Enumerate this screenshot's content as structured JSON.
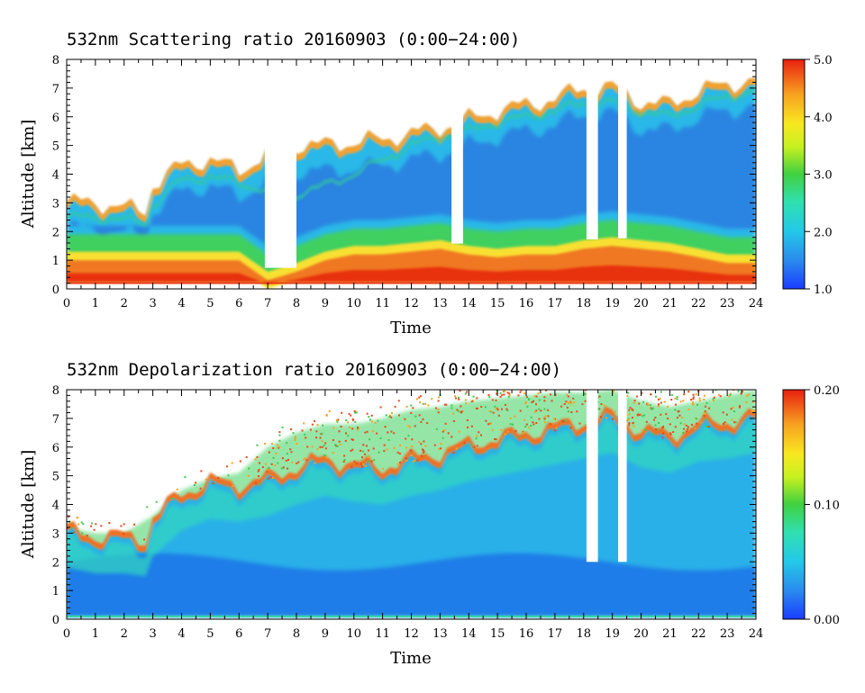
{
  "chart_data": [
    {
      "type": "heatmap",
      "title": "532nm Scattering ratio  20160903 (0:00−24:00)",
      "xlabel": "Time",
      "ylabel": "Altitude [km]",
      "xlim": [
        0,
        24
      ],
      "ylim": [
        0,
        8
      ],
      "xticks": [
        "0",
        "1",
        "2",
        "3",
        "4",
        "5",
        "6",
        "7",
        "8",
        "9",
        "10",
        "11",
        "12",
        "13",
        "14",
        "15",
        "16",
        "17",
        "18",
        "19",
        "20",
        "21",
        "22",
        "23",
        "24"
      ],
      "yticks": [
        "0",
        "1",
        "2",
        "3",
        "4",
        "5",
        "6",
        "7",
        "8"
      ],
      "colorbar": {
        "range": [
          1.0,
          5.0
        ],
        "ticks": [
          "1.0",
          "2.0",
          "3.0",
          "4.0",
          "5.0"
        ]
      },
      "cloud_top_km": [
        [
          0,
          2.9
        ],
        [
          1,
          2.9
        ],
        [
          2,
          2.7
        ],
        [
          2.8,
          2.6
        ],
        [
          3,
          3.5
        ],
        [
          4,
          4.2
        ],
        [
          5,
          4.4
        ],
        [
          6,
          4.0
        ],
        [
          6.5,
          4.3
        ],
        [
          7,
          4.6
        ],
        [
          8,
          4.9
        ],
        [
          9,
          4.9
        ],
        [
          10,
          5.0
        ],
        [
          11,
          5.1
        ],
        [
          12,
          5.3
        ],
        [
          13,
          5.5
        ],
        [
          14,
          5.8
        ],
        [
          15,
          6.1
        ],
        [
          16,
          6.3
        ],
        [
          17,
          6.5
        ],
        [
          18,
          6.9
        ],
        [
          19,
          6.9
        ],
        [
          20,
          6.4
        ],
        [
          21,
          6.3
        ],
        [
          22,
          6.8
        ],
        [
          23,
          7.0
        ],
        [
          24,
          7.2
        ]
      ],
      "high_layer_km": [
        [
          0,
          2.5
        ],
        [
          1,
          2.5
        ],
        [
          2,
          2.4
        ],
        [
          2.8,
          2.3
        ],
        [
          3,
          2.9
        ],
        [
          4,
          3.8
        ],
        [
          5,
          3.9
        ],
        [
          6,
          3.7
        ],
        [
          7,
          3.4
        ],
        [
          8,
          3.3
        ],
        [
          9,
          3.6
        ],
        [
          10,
          4.0
        ],
        [
          11,
          4.5
        ],
        [
          12,
          5.0
        ],
        [
          13,
          5.3
        ],
        [
          14,
          5.5
        ],
        [
          15,
          5.8
        ],
        [
          16,
          6.0
        ],
        [
          17,
          6.2
        ],
        [
          18,
          6.5
        ],
        [
          19,
          6.5
        ],
        [
          20,
          6.2
        ],
        [
          21,
          6.0
        ],
        [
          22,
          6.4
        ],
        [
          23,
          6.7
        ],
        [
          24,
          6.9
        ]
      ],
      "boundary_layer_top_km": [
        [
          0,
          1.0
        ],
        [
          1,
          1.0
        ],
        [
          2,
          1.0
        ],
        [
          3,
          1.0
        ],
        [
          4,
          1.0
        ],
        [
          5,
          1.0
        ],
        [
          6,
          1.0
        ],
        [
          7,
          0.3
        ],
        [
          8,
          0.6
        ],
        [
          9,
          1.0
        ],
        [
          10,
          1.2
        ],
        [
          11,
          1.2
        ],
        [
          12,
          1.3
        ],
        [
          13,
          1.4
        ],
        [
          14,
          1.2
        ],
        [
          15,
          1.1
        ],
        [
          16,
          1.2
        ],
        [
          17,
          1.2
        ],
        [
          18,
          1.4
        ],
        [
          19,
          1.5
        ],
        [
          20,
          1.4
        ],
        [
          21,
          1.3
        ],
        [
          22,
          1.1
        ],
        [
          23,
          0.9
        ],
        [
          24,
          0.9
        ]
      ],
      "clear_gaps_hours": [
        [
          6.9,
          8.0
        ],
        [
          13.4,
          13.8
        ],
        [
          18.1,
          18.5
        ],
        [
          19.2,
          19.5
        ]
      ]
    },
    {
      "type": "heatmap",
      "title": "532nm Depolarization ratio  20160903 (0:00−24:00)",
      "xlabel": "Time",
      "ylabel": "Altitude [km]",
      "xlim": [
        0,
        24
      ],
      "ylim": [
        0,
        8
      ],
      "xticks": [
        "0",
        "1",
        "2",
        "3",
        "4",
        "5",
        "6",
        "7",
        "8",
        "9",
        "10",
        "11",
        "12",
        "13",
        "14",
        "15",
        "16",
        "17",
        "18",
        "19",
        "20",
        "21",
        "22",
        "23",
        "24"
      ],
      "yticks": [
        "0",
        "1",
        "2",
        "3",
        "4",
        "5",
        "6",
        "7",
        "8"
      ],
      "colorbar": {
        "range": [
          0.0,
          0.2
        ],
        "ticks": [
          "0.00",
          "0.10",
          "0.20"
        ]
      },
      "cloud_top_km": [
        [
          0,
          3.0
        ],
        [
          1,
          2.8
        ],
        [
          2,
          2.8
        ],
        [
          2.8,
          2.7
        ],
        [
          3,
          3.4
        ],
        [
          4,
          4.3
        ],
        [
          5,
          4.7
        ],
        [
          6,
          4.6
        ],
        [
          7,
          4.8
        ],
        [
          8,
          5.2
        ],
        [
          9,
          5.5
        ],
        [
          10,
          5.3
        ],
        [
          11,
          5.2
        ],
        [
          12,
          5.5
        ],
        [
          13,
          5.7
        ],
        [
          14,
          6.0
        ],
        [
          15,
          6.2
        ],
        [
          16,
          6.4
        ],
        [
          17,
          6.6
        ],
        [
          18,
          6.8
        ],
        [
          19,
          7.0
        ],
        [
          20,
          6.5
        ],
        [
          21,
          6.3
        ],
        [
          22,
          6.7
        ],
        [
          23,
          6.8
        ],
        [
          24,
          7.0
        ]
      ],
      "upper_layer_top_km": [
        [
          0,
          3.2
        ],
        [
          1,
          3.0
        ],
        [
          2,
          3.0
        ],
        [
          3,
          3.6
        ],
        [
          4,
          4.5
        ],
        [
          5,
          4.9
        ],
        [
          6,
          5.1
        ],
        [
          7,
          6.0
        ],
        [
          8,
          6.5
        ],
        [
          9,
          6.8
        ],
        [
          10,
          6.8
        ],
        [
          11,
          7.0
        ],
        [
          12,
          7.3
        ],
        [
          13,
          7.4
        ],
        [
          14,
          7.6
        ],
        [
          15,
          7.7
        ],
        [
          16,
          7.8
        ],
        [
          17,
          7.9
        ],
        [
          18,
          7.9
        ],
        [
          19,
          8.0
        ],
        [
          20,
          7.6
        ],
        [
          21,
          7.4
        ],
        [
          22,
          7.6
        ],
        [
          23,
          7.8
        ],
        [
          24,
          8.0
        ]
      ],
      "clear_gaps_hours": [
        [
          18.1,
          18.5
        ],
        [
          19.2,
          19.5
        ]
      ]
    }
  ]
}
